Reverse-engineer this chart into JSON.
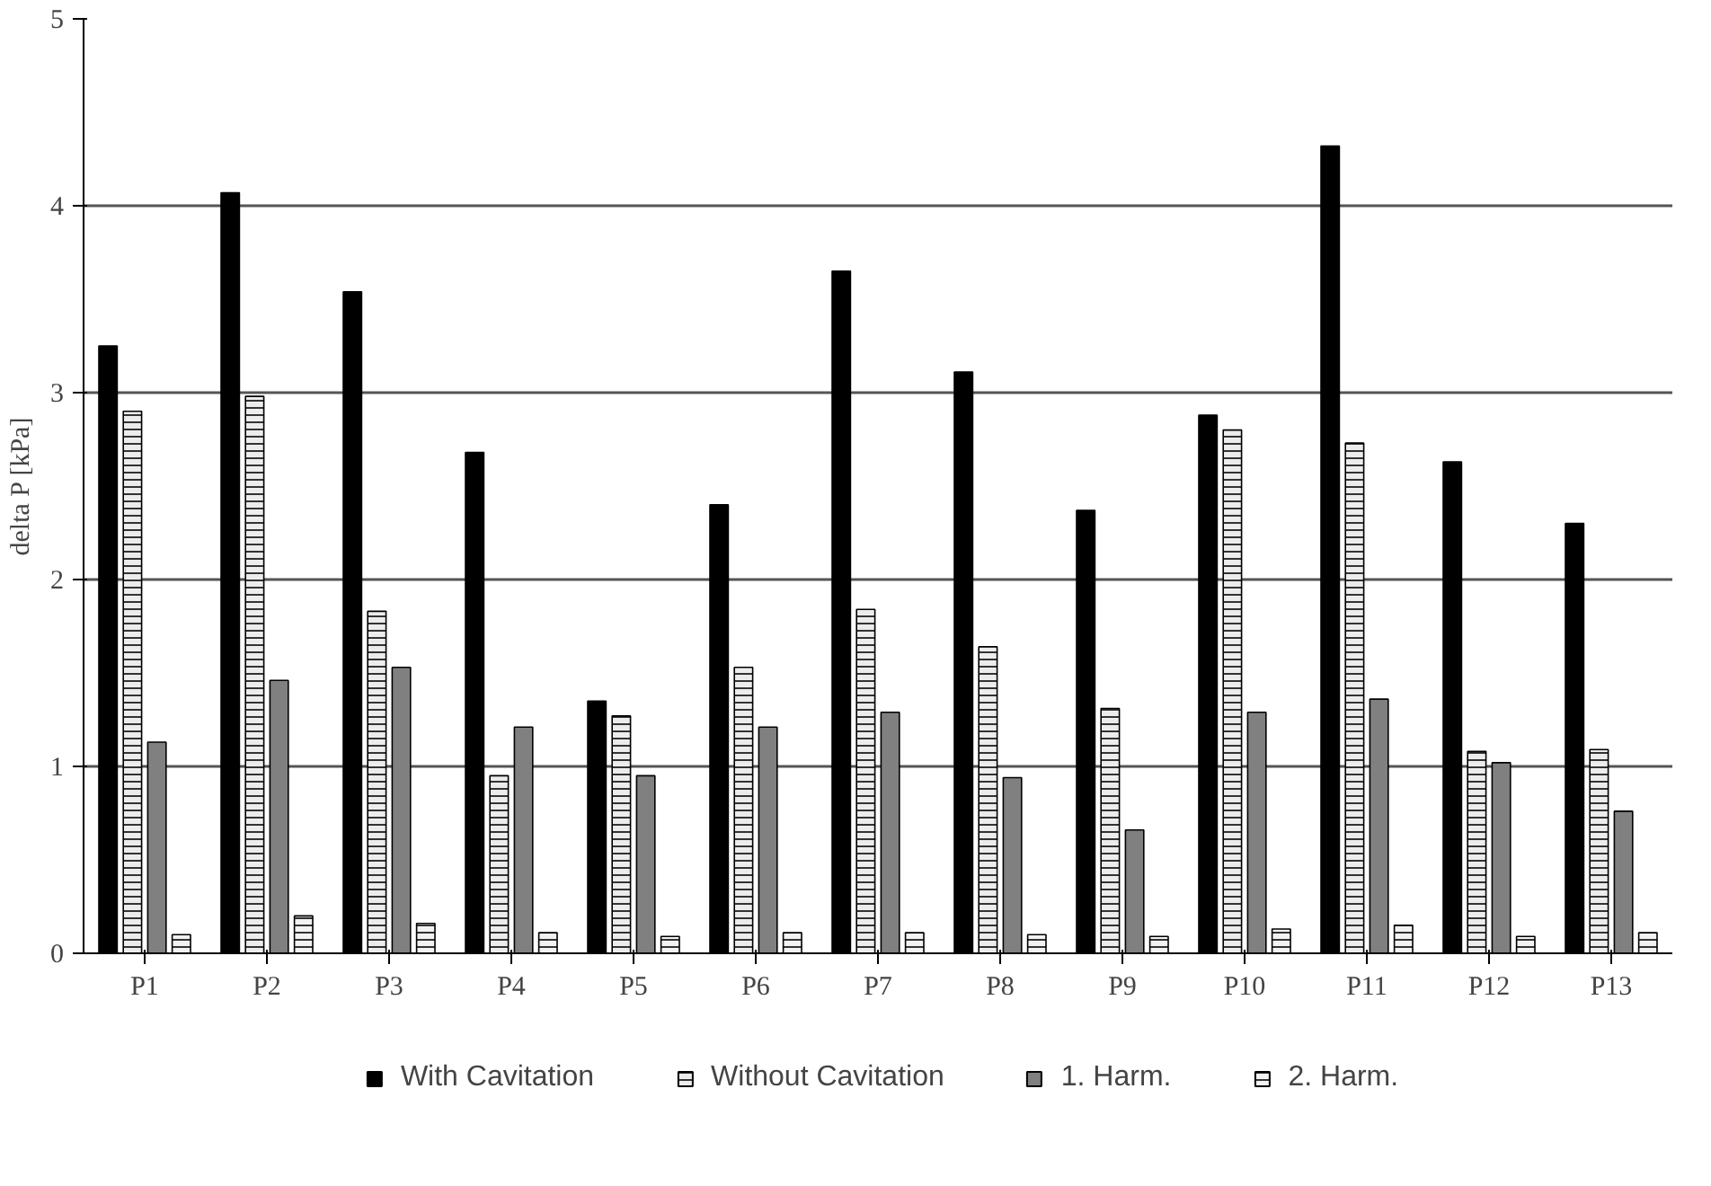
{
  "chart_data": {
    "type": "bar",
    "ylabel": "delta P [kPa]",
    "categories": [
      "P1",
      "P2",
      "P3",
      "P4",
      "P5",
      "P6",
      "P7",
      "P8",
      "P9",
      "P10",
      "P11",
      "P12",
      "P13"
    ],
    "series": [
      {
        "name": "With Cavitation",
        "color": "#000000",
        "values": [
          3.25,
          4.07,
          3.54,
          2.68,
          1.35,
          2.4,
          3.65,
          3.11,
          2.37,
          2.88,
          4.32,
          2.63,
          2.3
        ]
      },
      {
        "name": "Without Cavitation",
        "color": "#ececec",
        "values": [
          2.9,
          2.98,
          1.83,
          0.95,
          1.27,
          1.53,
          1.84,
          1.64,
          1.31,
          2.8,
          2.73,
          1.08,
          1.09
        ]
      },
      {
        "name": "1. Harm.",
        "color": "#808080",
        "values": [
          1.13,
          1.46,
          1.53,
          1.21,
          0.95,
          1.21,
          1.29,
          0.94,
          0.66,
          1.29,
          1.36,
          1.02,
          0.76
        ]
      },
      {
        "name": "2. Harm.",
        "color": "#f2f2f2",
        "values": [
          0.1,
          0.2,
          0.16,
          0.11,
          0.09,
          0.11,
          0.11,
          0.1,
          0.09,
          0.13,
          0.15,
          0.09,
          0.11
        ]
      }
    ],
    "ylim": [
      0,
      5
    ],
    "yticks": [
      0,
      1,
      2,
      3,
      4,
      5
    ],
    "grid": "y",
    "legend": "bottom"
  }
}
